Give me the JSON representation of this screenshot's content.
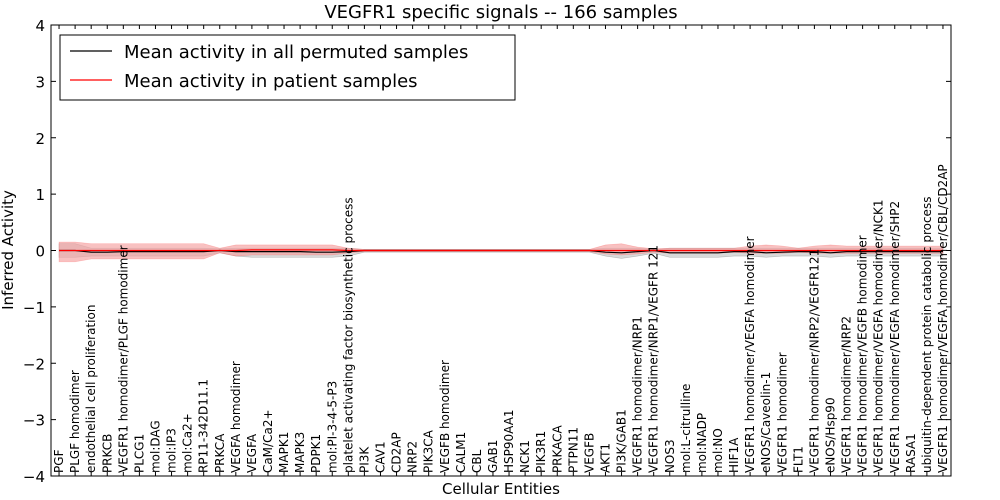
{
  "chart_data": {
    "type": "line",
    "title": "VEGFR1 specific signals -- 166 samples",
    "xlabel": "Cellular Entities",
    "ylabel": "Inferred Activity",
    "ylim": [
      -4,
      4
    ],
    "yticks": [
      {
        "value": 4,
        "label": "4"
      },
      {
        "value": 3,
        "label": "3"
      },
      {
        "value": 2,
        "label": "2"
      },
      {
        "value": 1,
        "label": "1"
      },
      {
        "value": 0,
        "label": "0"
      },
      {
        "value": -1,
        "label": "−1"
      },
      {
        "value": -2,
        "label": "−2"
      },
      {
        "value": -3,
        "label": "−3"
      },
      {
        "value": -4,
        "label": "−4"
      }
    ],
    "grid": false,
    "legend_position": "top-left",
    "categories": [
      "PGF",
      "PLGF homodimer",
      "endothelial cell proliferation",
      "PRKCB",
      "VEGFR1 homodimer/PLGF homodimer",
      "PLCG1",
      "mol:DAG",
      "mol:IP3",
      "mol:Ca2+",
      "RP11-342D11.1",
      "PRKCA",
      "VEGFA homodimer",
      "VEGFA",
      "CaM/Ca2+",
      "MAPK1",
      "MAPK3",
      "PDPK1",
      "mol:PI-3-4-5-P3",
      "platelet activating factor biosynthetic process",
      "PI3K",
      "CAV1",
      "CD2AP",
      "NRP2",
      "PIK3CA",
      "VEGFB homodimer",
      "CALM1",
      "CBL",
      "GAB1",
      "HSP90AA1",
      "NCK1",
      "PIK3R1",
      "PRKACA",
      "PTPN11",
      "VEGFB",
      "AKT1",
      "PI3K/GAB1",
      "VEGFR1 homodimer/NRP1",
      "VEGFR1 homodimer/NRP1/VEGFR 121",
      "NOS3",
      "mol:L-citrulline",
      "mol:NADP",
      "mol:NO",
      "HIF1A",
      "VEGFR1 homodimer/VEGFA homodimer",
      "eNOS/Caveolin-1",
      "VEGFR1 homodimer",
      "FLT1",
      "VEGFR1 homodimer/NRP2/VEGFR121",
      "eNOS/Hsp90",
      "VEGFR1 homodimer/NRP2",
      "VEGFR1 homodimer/VEGFB homodimer",
      "VEGFR1 homodimer/VEGFA homodimer/NCK1",
      "VEGFR1 homodimer/VEGFA homodimer/SHP2",
      "RASA1",
      "ubiquitin-dependent protein catabolic process",
      "VEGFR1 homodimer/VEGFA homodimer/CBL/CD2AP"
    ],
    "series": [
      {
        "name": "Mean activity in all permuted samples",
        "color": "#000000",
        "band_color": "#c0c0c0",
        "values": [
          0,
          0,
          -0.03,
          -0.03,
          -0.02,
          -0.02,
          -0.02,
          -0.02,
          -0.02,
          -0.02,
          0,
          -0.02,
          -0.02,
          -0.02,
          -0.02,
          -0.02,
          -0.03,
          -0.03,
          -0.02,
          0,
          0,
          0,
          0,
          0,
          0,
          0,
          0,
          0,
          0,
          0,
          0,
          0,
          0,
          0,
          -0.03,
          -0.04,
          -0.02,
          0,
          -0.04,
          -0.04,
          -0.04,
          -0.04,
          -0.02,
          -0.02,
          -0.04,
          -0.03,
          -0.02,
          -0.02,
          -0.04,
          -0.02,
          -0.02,
          -0.02,
          -0.02,
          -0.02,
          -0.02,
          -0.02
        ],
        "lower": [
          -0.12,
          -0.12,
          -0.1,
          -0.1,
          -0.1,
          -0.1,
          -0.1,
          -0.1,
          -0.1,
          -0.1,
          -0.04,
          -0.1,
          -0.12,
          -0.12,
          -0.12,
          -0.12,
          -0.12,
          -0.12,
          -0.1,
          -0.03,
          -0.03,
          -0.03,
          -0.03,
          -0.03,
          -0.03,
          -0.03,
          -0.03,
          -0.03,
          -0.03,
          -0.03,
          -0.03,
          -0.03,
          -0.03,
          -0.03,
          -0.1,
          -0.14,
          -0.1,
          -0.05,
          -0.12,
          -0.12,
          -0.12,
          -0.12,
          -0.1,
          -0.1,
          -0.12,
          -0.1,
          -0.1,
          -0.1,
          -0.12,
          -0.1,
          -0.1,
          -0.1,
          -0.1,
          -0.1,
          -0.1,
          -0.1
        ],
        "upper": [
          0.12,
          0.12,
          0.04,
          0.04,
          0.04,
          0.04,
          0.04,
          0.04,
          0.04,
          0.04,
          0.03,
          0.04,
          0.04,
          0.04,
          0.04,
          0.04,
          0.04,
          0.04,
          0.04,
          0.02,
          0.02,
          0.02,
          0.02,
          0.02,
          0.02,
          0.02,
          0.02,
          0.02,
          0.02,
          0.02,
          0.02,
          0.02,
          0.02,
          0.02,
          0.04,
          0.04,
          0.04,
          0.02,
          0.04,
          0.04,
          0.04,
          0.04,
          0.04,
          0.04,
          0.04,
          0.04,
          0.04,
          0.04,
          0.04,
          0.04,
          0.04,
          0.04,
          0.04,
          0.04,
          0.04,
          0.04
        ]
      },
      {
        "name": "Mean activity in patient samples",
        "color": "#ff0000",
        "band_color": "#f4a0a0",
        "values": [
          0,
          0,
          0,
          0,
          0,
          0,
          0,
          0,
          0,
          0,
          0,
          0,
          0.01,
          0.01,
          0.01,
          0.01,
          0.01,
          0.01,
          0,
          0,
          0,
          0,
          0,
          0,
          0,
          0,
          0,
          0,
          0,
          0,
          0,
          0,
          0,
          0,
          0,
          0,
          0,
          0,
          0,
          0,
          0,
          0,
          0,
          0,
          0,
          0,
          0,
          0,
          0,
          0,
          0,
          0,
          0,
          0,
          0,
          0
        ],
        "lower": [
          -0.2,
          -0.2,
          -0.15,
          -0.15,
          -0.15,
          -0.15,
          -0.15,
          -0.15,
          -0.15,
          -0.15,
          -0.04,
          -0.1,
          -0.08,
          -0.08,
          -0.08,
          -0.08,
          -0.08,
          -0.08,
          -0.04,
          -0.02,
          -0.02,
          -0.02,
          -0.02,
          -0.02,
          -0.02,
          -0.02,
          -0.02,
          -0.02,
          -0.02,
          -0.02,
          -0.02,
          -0.02,
          -0.02,
          -0.02,
          -0.06,
          -0.08,
          -0.06,
          -0.03,
          -0.05,
          -0.05,
          -0.05,
          -0.05,
          -0.03,
          -0.05,
          -0.05,
          -0.05,
          -0.03,
          -0.05,
          -0.05,
          -0.05,
          -0.05,
          -0.05,
          -0.05,
          -0.05,
          -0.05,
          -0.05
        ],
        "upper": [
          0.15,
          0.15,
          0.12,
          0.12,
          0.12,
          0.12,
          0.12,
          0.12,
          0.12,
          0.12,
          0.04,
          0.1,
          0.1,
          0.1,
          0.1,
          0.1,
          0.1,
          0.1,
          0.04,
          0.02,
          0.02,
          0.02,
          0.02,
          0.02,
          0.02,
          0.02,
          0.02,
          0.02,
          0.02,
          0.02,
          0.02,
          0.02,
          0.02,
          0.02,
          0.1,
          0.12,
          0.06,
          0.03,
          0.04,
          0.04,
          0.04,
          0.04,
          0.04,
          0.08,
          0.1,
          0.08,
          0.04,
          0.08,
          0.1,
          0.08,
          0.08,
          0.08,
          0.08,
          0.08,
          0.08,
          0.08
        ]
      }
    ]
  }
}
